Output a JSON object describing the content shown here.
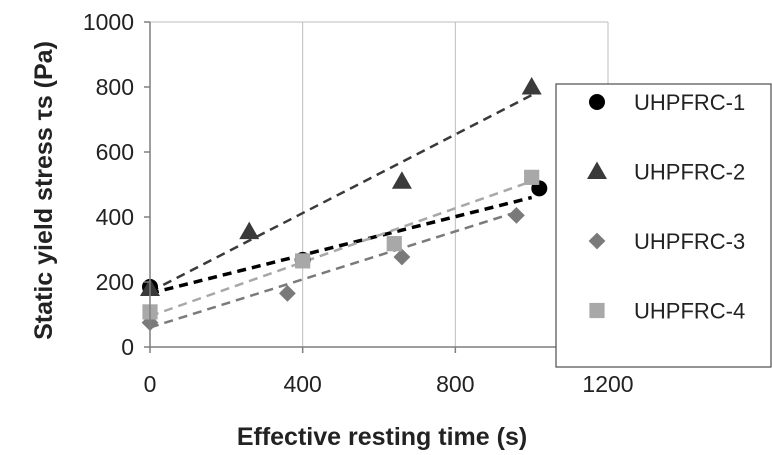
{
  "chart_data": {
    "type": "scatter",
    "xlabel": "Effective resting time (s)",
    "ylabel": "Static yield stress τs (Pa)",
    "xlim": [
      0,
      1200
    ],
    "ylim": [
      0,
      1000
    ],
    "x_ticks": [
      "0",
      "400",
      "800",
      "1200"
    ],
    "y_ticks": [
      "0",
      "200",
      "400",
      "600",
      "800",
      "1000"
    ],
    "grid": "vertical gridlines at x ticks",
    "legend_position": "right",
    "series": [
      {
        "name": "UHPFRC-1",
        "marker": "circle",
        "color": "#000000",
        "points": [
          [
            0,
            185
          ],
          [
            400,
            268
          ],
          [
            1020,
            488
          ]
        ],
        "trend": [
          [
            0,
            165
          ],
          [
            1000,
            460
          ]
        ]
      },
      {
        "name": "UHPFRC-2",
        "marker": "triangle",
        "color": "#3a3a3a",
        "points": [
          [
            0,
            180
          ],
          [
            260,
            355
          ],
          [
            660,
            510
          ],
          [
            1000,
            800
          ]
        ],
        "trend": [
          [
            0,
            170
          ],
          [
            1000,
            775
          ]
        ]
      },
      {
        "name": "UHPFRC-3",
        "marker": "diamond",
        "color": "#7a7a7a",
        "points": [
          [
            0,
            75
          ],
          [
            360,
            165
          ],
          [
            660,
            277
          ],
          [
            960,
            405
          ]
        ],
        "trend": [
          [
            0,
            60
          ],
          [
            960,
            415
          ]
        ]
      },
      {
        "name": "UHPFRC-4",
        "marker": "square",
        "color": "#a8a8a8",
        "points": [
          [
            0,
            108
          ],
          [
            400,
            265
          ],
          [
            640,
            318
          ],
          [
            1000,
            522
          ]
        ],
        "trend": [
          [
            0,
            95
          ],
          [
            1000,
            510
          ]
        ]
      }
    ]
  }
}
